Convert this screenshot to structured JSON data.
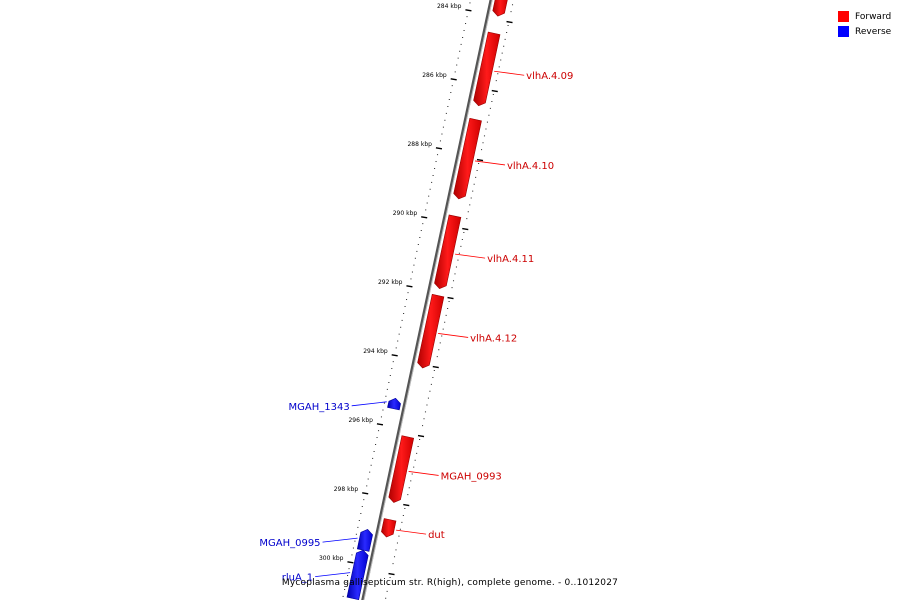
{
  "legend": {
    "forward": {
      "label": "Forward",
      "color": "#ff0000"
    },
    "reverse": {
      "label": "Reverse",
      "color": "#0000ff"
    }
  },
  "footer": "Mycoplasma gallisepticum str. R(high), complete genome. - 0..1012027",
  "axis": {
    "unit": "kbp",
    "ticks": [
      284,
      286,
      288,
      290,
      292,
      294,
      296,
      298,
      300
    ]
  },
  "genes": [
    {
      "name": "",
      "strand": "forward",
      "start": 283.4,
      "end": 284.0
    },
    {
      "name": "vlhA.4.09",
      "strand": "forward",
      "start": 284.5,
      "end": 286.6
    },
    {
      "name": "vlhA.4.10",
      "strand": "forward",
      "start": 287.0,
      "end": 289.3
    },
    {
      "name": "vlhA.4.11",
      "strand": "forward",
      "start": 289.8,
      "end": 291.9
    },
    {
      "name": "vlhA.4.12",
      "strand": "forward",
      "start": 292.1,
      "end": 294.2
    },
    {
      "name": "MGAH_1343",
      "strand": "reverse",
      "start": 295.2,
      "end": 295.5
    },
    {
      "name": "MGAH_0993",
      "strand": "forward",
      "start": 296.2,
      "end": 298.1
    },
    {
      "name": "dut",
      "strand": "forward",
      "start": 298.6,
      "end": 299.1
    },
    {
      "name": "MGAH_0995",
      "strand": "reverse",
      "start": 299.0,
      "end": 299.6
    },
    {
      "name": "rluA_1",
      "strand": "reverse",
      "start": 299.6,
      "end": 301.0
    }
  ]
}
